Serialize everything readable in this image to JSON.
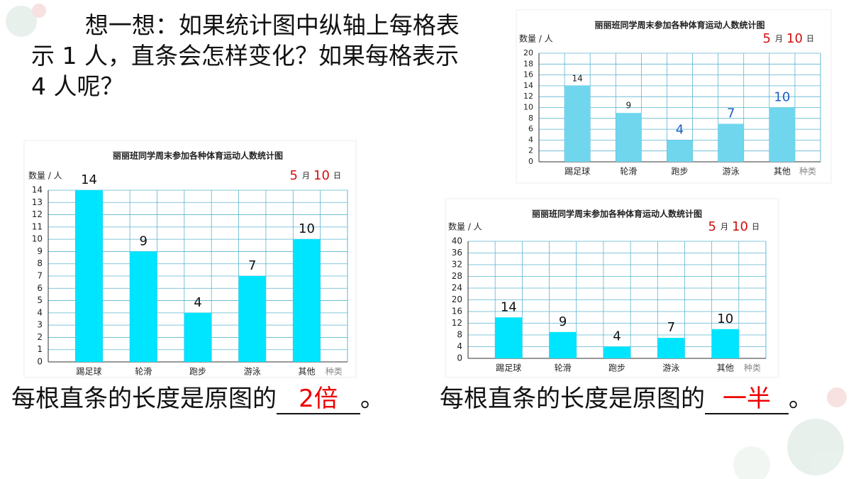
{
  "question": "想一想：如果统计图中纵轴上每格表示 1 人，直条会怎样变化？如果每格表示 4 人呢？",
  "chart_data": [
    {
      "type": "bar",
      "title": "丽丽班同学周末参加各种体育运动人数统计图",
      "y_label": "数量 / 人",
      "x_label": "种类",
      "date": {
        "month": 5,
        "month_unit": "月",
        "day": 10,
        "day_unit": "日"
      },
      "categories": [
        "踢足球",
        "轮滑",
        "跑步",
        "游泳",
        "其他"
      ],
      "values": [
        14,
        9,
        4,
        7,
        10
      ],
      "color": "#6fd6ee",
      "value_label_colors": [
        "#222",
        "#222",
        "#1a5fc4",
        "#1a5fc4",
        "#1a5fc4"
      ],
      "ylim": [
        0,
        20
      ],
      "yticks": [
        0,
        2,
        4,
        6,
        8,
        10,
        12,
        14,
        16,
        18,
        20
      ],
      "grid": true
    },
    {
      "type": "bar",
      "title": "丽丽班同学周末参加各种体育运动人数统计图",
      "y_label": "数量 / 人",
      "x_label": "种类",
      "date": {
        "month": 5,
        "month_unit": "月",
        "day": 10,
        "day_unit": "日"
      },
      "categories": [
        "踢足球",
        "轮滑",
        "跑步",
        "游泳",
        "其他"
      ],
      "values": [
        14,
        9,
        4,
        7,
        10
      ],
      "color": "#00e5ff",
      "value_label_colors": [
        "#111",
        "#111",
        "#111",
        "#111",
        "#111"
      ],
      "ylim": [
        0,
        14
      ],
      "yticks": [
        0,
        1,
        2,
        3,
        4,
        5,
        6,
        7,
        8,
        9,
        10,
        11,
        12,
        13,
        14
      ],
      "grid": true
    },
    {
      "type": "bar",
      "title": "丽丽班同学周末参加各种体育运动人数统计图",
      "y_label": "数量 / 人",
      "x_label": "种类",
      "date": {
        "month": 5,
        "month_unit": "月",
        "day": 10,
        "day_unit": "日"
      },
      "categories": [
        "踢足球",
        "轮滑",
        "跑步",
        "游泳",
        "其他"
      ],
      "values": [
        14,
        9,
        4,
        7,
        10
      ],
      "color": "#00e5ff",
      "value_label_colors": [
        "#111",
        "#111",
        "#111",
        "#111",
        "#111"
      ],
      "ylim": [
        0,
        40
      ],
      "yticks": [
        0,
        4,
        8,
        12,
        16,
        20,
        24,
        28,
        32,
        36,
        40
      ],
      "grid": true
    }
  ],
  "answers": [
    {
      "prefix": "每根直条的长度是原图的",
      "blank": "2倍",
      "suffix": "。"
    },
    {
      "prefix": "每根直条的长度是原图的",
      "blank": "一半",
      "suffix": "。"
    }
  ]
}
